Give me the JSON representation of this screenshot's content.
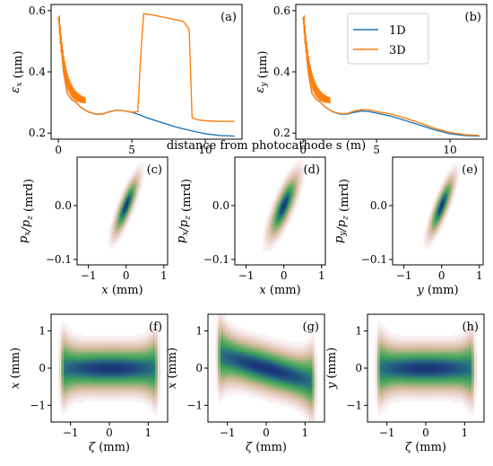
{
  "figure": {
    "shared_xlabel": "distance from photocathode s (m)",
    "colors": {
      "1D": "#1f77b4",
      "3D": "#ff7f0e"
    }
  },
  "chart_data": [
    {
      "panel": "(a)",
      "type": "line",
      "xlim": [
        -0.5,
        12.5
      ],
      "ylim": [
        0.18,
        0.62
      ],
      "xticks": [
        "0",
        "5",
        "10"
      ],
      "yticks": [
        "0.2",
        "0.4",
        "0.6"
      ],
      "ylabel": "ε_x (μm)",
      "series": [
        {
          "name": "1D",
          "x": [
            0,
            0.2,
            0.35,
            0.6,
            0.9,
            1.2,
            1.5,
            2,
            2.5,
            3,
            3.5,
            4,
            4.5,
            5,
            5.5,
            6,
            7,
            8,
            9,
            10,
            11,
            12
          ],
          "y": [
            0.58,
            0.48,
            0.4,
            0.33,
            0.31,
            0.3,
            0.285,
            0.27,
            0.262,
            0.262,
            0.27,
            0.275,
            0.272,
            0.268,
            0.26,
            0.25,
            0.235,
            0.22,
            0.208,
            0.198,
            0.192,
            0.19
          ]
        },
        {
          "name": "3D",
          "x": [
            0,
            0.2,
            0.35,
            0.6,
            0.9,
            1.2,
            1.5,
            2,
            2.5,
            3,
            3.5,
            4,
            4.5,
            5,
            5.4,
            5.6,
            5.8,
            6.5,
            7.5,
            8.5,
            8.9,
            9.1,
            9.5,
            10,
            11,
            12
          ],
          "y": [
            0.58,
            0.48,
            0.4,
            0.33,
            0.31,
            0.3,
            0.285,
            0.27,
            0.262,
            0.262,
            0.27,
            0.275,
            0.272,
            0.268,
            0.27,
            0.45,
            0.59,
            0.585,
            0.575,
            0.565,
            0.54,
            0.25,
            0.243,
            0.24,
            0.238,
            0.238
          ]
        }
      ]
    },
    {
      "panel": "(b)",
      "type": "line",
      "xlim": [
        -0.5,
        12.5
      ],
      "ylim": [
        0.18,
        0.62
      ],
      "xticks": [
        "0",
        "5",
        "10"
      ],
      "yticks": [
        "0.2",
        "0.4",
        "0.6"
      ],
      "ylabel": "ε_y (μm)",
      "legend": [
        "1D",
        "3D"
      ],
      "series": [
        {
          "name": "1D",
          "x": [
            0,
            0.2,
            0.35,
            0.6,
            0.9,
            1.2,
            1.5,
            2,
            2.5,
            3,
            3.5,
            4,
            4.5,
            5,
            6,
            7,
            8,
            9,
            10,
            11,
            12
          ],
          "y": [
            0.58,
            0.48,
            0.4,
            0.33,
            0.31,
            0.3,
            0.285,
            0.27,
            0.262,
            0.262,
            0.268,
            0.272,
            0.27,
            0.265,
            0.255,
            0.24,
            0.225,
            0.21,
            0.198,
            0.192,
            0.19
          ]
        },
        {
          "name": "3D",
          "x": [
            0,
            0.2,
            0.35,
            0.6,
            0.9,
            1.2,
            1.5,
            2,
            2.5,
            3,
            3.5,
            4,
            4.5,
            5,
            6,
            7,
            8,
            9,
            10,
            11,
            12
          ],
          "y": [
            0.58,
            0.48,
            0.4,
            0.33,
            0.31,
            0.3,
            0.285,
            0.27,
            0.264,
            0.264,
            0.272,
            0.277,
            0.276,
            0.27,
            0.262,
            0.248,
            0.232,
            0.215,
            0.202,
            0.195,
            0.192
          ]
        }
      ]
    },
    {
      "panel": "(c)",
      "type": "heatmap",
      "xlabel": "x (mm)",
      "ylabel": "p_x/p_z (mrd)",
      "xlim": [
        -1.3,
        1.1
      ],
      "ylim": [
        -0.11,
        0.09
      ],
      "xticks": [
        "−1",
        "0",
        "1"
      ],
      "yticks": [
        "−0.1",
        "0.0"
      ],
      "distribution": {
        "center": [
          0.0,
          0.0
        ],
        "sx": 0.17,
        "sy": 0.028,
        "corr": 0.85
      }
    },
    {
      "panel": "(d)",
      "type": "heatmap",
      "xlabel": "x (mm)",
      "ylabel": "p_x/p_z (mrd)",
      "xlim": [
        -1.3,
        1.1
      ],
      "ylim": [
        -0.11,
        0.09
      ],
      "xticks": [
        "−1",
        "0",
        "1"
      ],
      "yticks": [
        "−0.1",
        "0.0"
      ],
      "distribution": {
        "center": [
          0.0,
          0.0
        ],
        "sx": 0.2,
        "sy": 0.03,
        "corr": 0.8
      }
    },
    {
      "panel": "(e)",
      "type": "heatmap",
      "xlabel": "y (mm)",
      "ylabel": "p_y/p_z (mrd)",
      "xlim": [
        -1.3,
        1.1
      ],
      "ylim": [
        -0.11,
        0.09
      ],
      "xticks": [
        "−1",
        "0",
        "1"
      ],
      "yticks": [
        "−0.1",
        "0.0"
      ],
      "distribution": {
        "center": [
          0.0,
          0.0
        ],
        "sx": 0.17,
        "sy": 0.028,
        "corr": 0.85
      }
    },
    {
      "panel": "(f)",
      "type": "heatmap",
      "xlabel": "ζ (mm)",
      "ylabel": "x (mm)",
      "xlim": [
        -1.5,
        1.5
      ],
      "ylim": [
        -1.45,
        1.45
      ],
      "xticks": [
        "−1",
        "0",
        "1"
      ],
      "yticks": [
        "−1",
        "0",
        "1"
      ],
      "distribution": {
        "halfwidth": 1.15,
        "halfheight": 0.5,
        "slope": 0.0
      }
    },
    {
      "panel": "(g)",
      "type": "heatmap",
      "xlabel": "ζ (mm)",
      "ylabel": "x (mm)",
      "xlim": [
        -1.5,
        1.5
      ],
      "ylim": [
        -1.45,
        1.45
      ],
      "xticks": [
        "−1",
        "0",
        "1"
      ],
      "yticks": [
        "−1",
        "0",
        "1"
      ],
      "distribution": {
        "halfwidth": 1.15,
        "halfheight": 0.5,
        "slope": -0.3
      }
    },
    {
      "panel": "(h)",
      "type": "heatmap",
      "xlabel": "ζ (mm)",
      "ylabel": "y (mm)",
      "xlim": [
        -1.5,
        1.5
      ],
      "ylim": [
        -1.45,
        1.45
      ],
      "xticks": [
        "−1",
        "0",
        "1"
      ],
      "yticks": [
        "−1",
        "0",
        "1"
      ],
      "distribution": {
        "halfwidth": 1.15,
        "halfheight": 0.5,
        "slope": 0.0
      }
    }
  ]
}
